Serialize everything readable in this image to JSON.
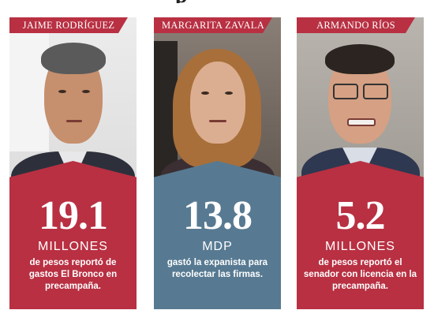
{
  "cards": [
    {
      "name": "JAIME RODRÍGUEZ",
      "figure": "19.1",
      "unit": "MILLONES",
      "description": "de pesos reportó de gastos El Bronco en precampaña.",
      "theme": "#b83042",
      "photo_icon": "man-portrait-suit"
    },
    {
      "name": "MARGARITA ZAVALA",
      "figure": "13.8",
      "unit": "MDP",
      "description": "gastó la expanista para recolectar las firmas.",
      "theme": "#577a92",
      "photo_icon": "woman-portrait"
    },
    {
      "name": "ARMANDO RÍOS",
      "figure": "5.2",
      "unit": "MILLONES",
      "description": "de pesos reportó el senador con licencia en la precampaña.",
      "theme": "#b83042",
      "photo_icon": "man-portrait-glasses"
    }
  ],
  "colors": {
    "red": "#b83042",
    "blue": "#577a92",
    "skin": "#d9a888",
    "suit": "#2f3340"
  }
}
